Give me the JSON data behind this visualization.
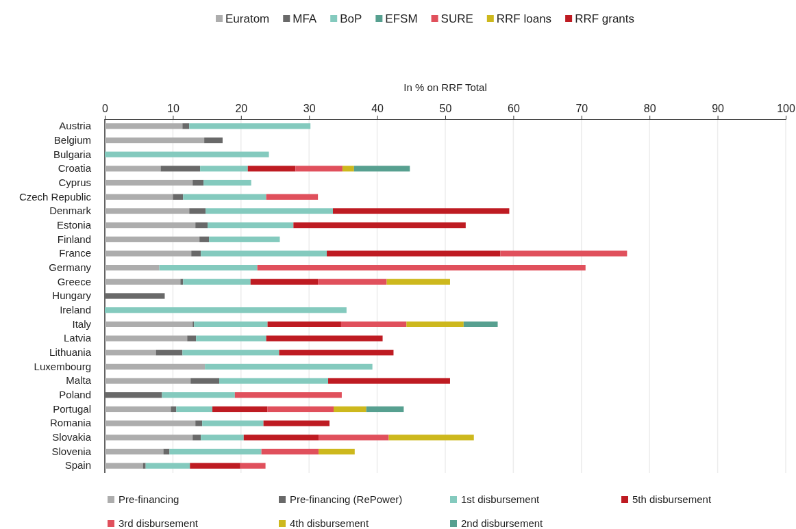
{
  "chart_data": {
    "type": "bar",
    "orientation": "horizontal",
    "stacked": true,
    "xlabel": "In % on RRF Total",
    "annotations": [
      "Euratom",
      "MFA",
      "BoP",
      "EFSM",
      "SURE",
      "RRF loans",
      "RRF grants"
    ],
    "categories": [
      "Austria",
      "Belgium",
      "Bulgaria",
      "Croatia",
      "Cyprus",
      "Czech Republic",
      "Denmark",
      "Estonia",
      "Finland",
      "France",
      "Germany",
      "Greece",
      "Hungary",
      "Ireland",
      "Italy",
      "Latvia",
      "Lithuania",
      "Luxembourg",
      "Malta",
      "Poland",
      "Portugal",
      "Romania",
      "Slovakia",
      "Slovenia",
      "Spain"
    ],
    "series": [
      {
        "name": "Pre-financing",
        "color": "#adadad",
        "values": [
          11.4,
          14.6,
          null,
          8.2,
          12.9,
          10.0,
          12.4,
          13.3,
          13.9,
          12.7,
          8.0,
          11.1,
          null,
          null,
          12.9,
          12.1,
          7.5,
          14.7,
          12.6,
          null,
          9.7,
          13.3,
          12.9,
          8.6,
          5.6
        ]
      },
      {
        "name": "Pre-financing (RePower)",
        "color": "#696969",
        "values": [
          1.0,
          2.7,
          null,
          5.8,
          1.6,
          1.5,
          2.4,
          1.8,
          1.4,
          1.4,
          null,
          0.4,
          8.8,
          null,
          0.2,
          1.3,
          3.9,
          null,
          4.2,
          8.4,
          0.8,
          1.0,
          1.2,
          0.9,
          0.4
        ]
      },
      {
        "name": "1st disbursement",
        "color": "#84cabe",
        "values": [
          17.8,
          null,
          24.1,
          7.0,
          7.0,
          12.2,
          18.7,
          12.6,
          10.4,
          18.5,
          14.4,
          9.9,
          null,
          35.5,
          10.8,
          10.3,
          14.2,
          24.6,
          16.0,
          10.7,
          5.3,
          9.0,
          6.3,
          13.5,
          6.5
        ]
      },
      {
        "name": "5th disbursement",
        "color": "#be1b22",
        "values": [
          null,
          null,
          null,
          7.0,
          null,
          null,
          25.9,
          25.3,
          null,
          25.5,
          null,
          9.9,
          null,
          null,
          10.8,
          17.1,
          16.8,
          null,
          17.9,
          null,
          8.1,
          9.7,
          11.0,
          null,
          7.4
        ]
      },
      {
        "name": "3rd disbursement",
        "color": "#e0505c",
        "values": [
          null,
          null,
          null,
          6.9,
          null,
          7.6,
          null,
          null,
          null,
          18.6,
          48.2,
          10.1,
          null,
          null,
          9.6,
          null,
          null,
          null,
          null,
          15.7,
          9.7,
          null,
          10.3,
          8.4,
          3.7
        ]
      },
      {
        "name": "4th disbursement",
        "color": "#cdb81d",
        "values": [
          null,
          null,
          null,
          1.7,
          null,
          null,
          null,
          null,
          null,
          null,
          null,
          9.3,
          null,
          null,
          8.4,
          null,
          null,
          null,
          null,
          null,
          4.8,
          null,
          12.5,
          5.3,
          null
        ]
      },
      {
        "name": "2nd disbursement",
        "color": "#57a090",
        "values": [
          null,
          null,
          null,
          8.2,
          null,
          null,
          null,
          null,
          null,
          null,
          null,
          null,
          null,
          null,
          5.0,
          null,
          null,
          null,
          null,
          null,
          5.5,
          null,
          null,
          null,
          null
        ]
      }
    ],
    "xlim": [
      0,
      100
    ],
    "xticks": [
      0,
      10,
      20,
      30,
      40,
      50,
      60,
      70,
      80,
      90,
      100
    ],
    "grid": "x",
    "legend": "bottom"
  }
}
